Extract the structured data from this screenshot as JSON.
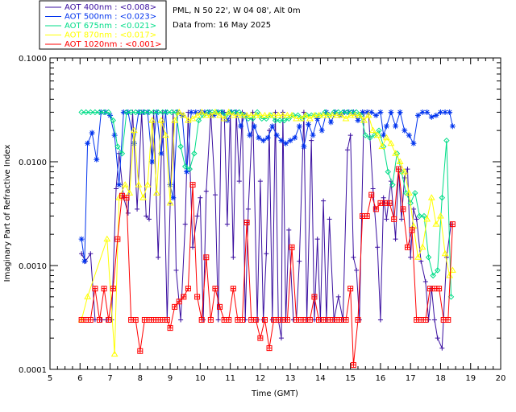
{
  "chart_data": {
    "type": "scatter",
    "title": "PML, N 50 22', W 04 08', Alt 0m",
    "subtitle": "Data from: 16 May 2025",
    "xlabel": "Time (GMT)",
    "ylabel": "Imaginary Part of Refractive Index",
    "xlim": [
      5,
      20
    ],
    "ylim": [
      0.0001,
      0.1
    ],
    "yscale": "log",
    "x_ticks": [
      "5",
      "6",
      "7",
      "8",
      "9",
      "10",
      "11",
      "12",
      "13",
      "14",
      "15",
      "16",
      "17",
      "18",
      "19",
      "20"
    ],
    "y_ticks": [
      "0.0001",
      "0.0010",
      "0.0100",
      "0.1000"
    ],
    "legend": [
      {
        "label": "AOT  400nm : <0.008>",
        "color": "#3a0fa0"
      },
      {
        "label": "AOT  500nm : <0.023>",
        "color": "#0033ee"
      },
      {
        "label": "AOT  675nm : <0.021>",
        "color": "#00dd88"
      },
      {
        "label": "AOT  870nm : <0.017>",
        "color": "#ffff00"
      },
      {
        "label": "AOT 1020nm : <0.001>",
        "color": "#ff0000"
      }
    ],
    "series": [
      {
        "name": "AOT 400nm",
        "color": "#3a0fa0",
        "marker": "plus",
        "x": [
          6.05,
          6.18,
          6.35,
          6.5,
          6.7,
          6.9,
          7.05,
          7.2,
          7.3,
          7.45,
          7.6,
          7.75,
          7.9,
          8.05,
          8.2,
          8.3,
          8.45,
          8.6,
          8.75,
          8.9,
          9.0,
          9.1,
          9.2,
          9.35,
          9.5,
          9.6,
          9.75,
          9.9,
          10.0,
          10.1,
          10.2,
          10.35,
          10.5,
          10.6,
          10.7,
          10.8,
          10.9,
          11.0,
          11.1,
          11.2,
          11.3,
          11.4,
          11.5,
          11.6,
          11.75,
          11.9,
          12.0,
          12.1,
          12.2,
          12.3,
          12.4,
          12.5,
          12.6,
          12.7,
          12.75,
          12.85,
          12.95,
          13.1,
          13.2,
          13.3,
          13.45,
          13.55,
          13.7,
          13.8,
          13.9,
          14.0,
          14.1,
          14.2,
          14.3,
          14.45,
          14.6,
          14.75,
          14.9,
          15.0,
          15.1,
          15.2,
          15.3,
          15.45,
          15.6,
          15.75,
          15.9,
          16.0,
          16.1,
          16.2,
          16.35,
          16.5,
          16.6,
          16.7,
          16.8,
          16.9,
          17.0,
          17.1,
          17.2,
          17.35,
          17.5,
          17.6,
          17.7,
          17.8,
          17.9,
          18.05,
          18.2,
          18.35
        ],
        "y": [
          0.0013,
          0.0011,
          0.0013,
          0.0003,
          0.0003,
          0.0003,
          0.0003,
          0.0055,
          0.012,
          0.0045,
          0.0032,
          0.03,
          0.0035,
          0.03,
          0.003,
          0.0028,
          0.03,
          0.0012,
          0.03,
          0.0003,
          0.004,
          0.03,
          0.0009,
          0.0003,
          0.0025,
          0.03,
          0.0015,
          0.003,
          0.0045,
          0.0003,
          0.0052,
          0.03,
          0.0048,
          0.0003,
          0.03,
          0.03,
          0.0025,
          0.03,
          0.0012,
          0.03,
          0.0065,
          0.03,
          0.0003,
          0.0035,
          0.03,
          0.0003,
          0.0065,
          0.0003,
          0.0013,
          0.02,
          0.0003,
          0.03,
          0.0003,
          0.0002,
          0.03,
          0.0003,
          0.0022,
          0.0003,
          0.0003,
          0.0011,
          0.03,
          0.0003,
          0.016,
          0.0003,
          0.0018,
          0.0003,
          0.0042,
          0.0003,
          0.0028,
          0.0003,
          0.0005,
          0.0003,
          0.013,
          0.018,
          0.0012,
          0.0009,
          0.0003,
          0.03,
          0.03,
          0.0055,
          0.0015,
          0.0003,
          0.0045,
          0.0028,
          0.0065,
          0.0018,
          0.0085,
          0.0028,
          0.007,
          0.0085,
          0.0012,
          0.0035,
          0.0028,
          0.0011,
          0.0007,
          0.0003,
          0.0006,
          0.0003,
          0.0002,
          0.00016,
          0.0012,
          0.0025
        ]
      },
      {
        "name": "AOT 500nm",
        "color": "#0033ee",
        "marker": "asterisk",
        "x": [
          6.05,
          6.15,
          6.25,
          6.4,
          6.55,
          6.7,
          6.85,
          7.0,
          7.15,
          7.3,
          7.45,
          7.6,
          7.8,
          7.95,
          8.1,
          8.25,
          8.4,
          8.55,
          8.7,
          8.85,
          9.0,
          9.1,
          9.25,
          9.4,
          9.55,
          9.7,
          9.85,
          10.0,
          10.15,
          10.3,
          10.45,
          10.6,
          10.75,
          10.9,
          11.05,
          11.2,
          11.35,
          11.5,
          11.65,
          11.8,
          11.95,
          12.1,
          12.25,
          12.4,
          12.55,
          12.7,
          12.85,
          13.0,
          13.15,
          13.3,
          13.45,
          13.6,
          13.75,
          13.9,
          14.05,
          14.2,
          14.35,
          14.5,
          14.65,
          14.8,
          14.95,
          15.1,
          15.25,
          15.4,
          15.55,
          15.7,
          15.85,
          16.0,
          16.1,
          16.2,
          16.35,
          16.5,
          16.65,
          16.8,
          16.95,
          17.1,
          17.25,
          17.4,
          17.55,
          17.7,
          17.85,
          18.0,
          18.15,
          18.3,
          18.4
        ],
        "y": [
          0.0018,
          0.0011,
          0.015,
          0.019,
          0.0105,
          0.03,
          0.03,
          0.028,
          0.018,
          0.006,
          0.03,
          0.03,
          0.015,
          0.03,
          0.03,
          0.03,
          0.01,
          0.03,
          0.012,
          0.03,
          0.006,
          0.0045,
          0.03,
          0.028,
          0.008,
          0.03,
          0.03,
          0.03,
          0.03,
          0.03,
          0.028,
          0.03,
          0.03,
          0.025,
          0.03,
          0.03,
          0.022,
          0.028,
          0.018,
          0.022,
          0.017,
          0.016,
          0.017,
          0.022,
          0.018,
          0.016,
          0.015,
          0.016,
          0.017,
          0.022,
          0.014,
          0.023,
          0.018,
          0.026,
          0.02,
          0.03,
          0.024,
          0.03,
          0.028,
          0.03,
          0.03,
          0.03,
          0.025,
          0.03,
          0.03,
          0.03,
          0.028,
          0.03,
          0.018,
          0.022,
          0.03,
          0.022,
          0.03,
          0.02,
          0.018,
          0.015,
          0.028,
          0.03,
          0.03,
          0.027,
          0.028,
          0.03,
          0.03,
          0.03,
          0.022
        ]
      },
      {
        "name": "AOT 675nm",
        "color": "#00dd88",
        "marker": "diamond",
        "x": [
          6.05,
          6.2,
          6.35,
          6.5,
          6.65,
          6.8,
          6.95,
          7.1,
          7.25,
          7.4,
          7.55,
          7.7,
          7.85,
          8.0,
          8.15,
          8.3,
          8.45,
          8.6,
          8.75,
          8.9,
          9.05,
          9.2,
          9.35,
          9.5,
          9.65,
          9.8,
          9.95,
          10.1,
          10.25,
          10.4,
          10.55,
          10.7,
          10.85,
          11.0,
          11.15,
          11.3,
          11.45,
          11.6,
          11.75,
          11.9,
          12.05,
          12.2,
          12.35,
          12.5,
          12.65,
          12.8,
          12.95,
          13.1,
          13.25,
          13.4,
          13.55,
          13.7,
          13.85,
          14.0,
          14.15,
          14.3,
          14.45,
          14.6,
          14.75,
          14.9,
          15.05,
          15.2,
          15.35,
          15.5,
          15.65,
          15.8,
          15.95,
          16.1,
          16.25,
          16.4,
          16.55,
          16.7,
          16.85,
          17.0,
          17.15,
          17.3,
          17.45,
          17.6,
          17.75,
          17.9,
          18.05,
          18.2,
          18.35
        ],
        "y": [
          0.03,
          0.03,
          0.03,
          0.03,
          0.03,
          0.03,
          0.03,
          0.025,
          0.014,
          0.012,
          0.03,
          0.03,
          0.03,
          0.03,
          0.03,
          0.03,
          0.03,
          0.03,
          0.03,
          0.03,
          0.03,
          0.03,
          0.014,
          0.009,
          0.0085,
          0.012,
          0.025,
          0.028,
          0.03,
          0.03,
          0.03,
          0.03,
          0.028,
          0.03,
          0.03,
          0.03,
          0.028,
          0.026,
          0.026,
          0.03,
          0.026,
          0.026,
          0.028,
          0.025,
          0.025,
          0.025,
          0.026,
          0.028,
          0.028,
          0.026,
          0.028,
          0.028,
          0.028,
          0.028,
          0.03,
          0.028,
          0.03,
          0.03,
          0.03,
          0.03,
          0.03,
          0.03,
          0.028,
          0.018,
          0.017,
          0.018,
          0.02,
          0.014,
          0.008,
          0.006,
          0.012,
          0.008,
          0.005,
          0.004,
          0.005,
          0.003,
          0.003,
          0.0012,
          0.0008,
          0.0009,
          0.0045,
          0.016,
          0.0005
        ]
      },
      {
        "name": "AOT 870nm",
        "color": "#ffff00",
        "marker": "triangle",
        "x": [
          6.05,
          6.25,
          6.9,
          7.15,
          7.3,
          7.5,
          7.65,
          7.8,
          7.95,
          8.1,
          8.25,
          8.4,
          8.55,
          8.7,
          8.85,
          9.0,
          9.15,
          9.3,
          9.45,
          9.6,
          9.75,
          9.9,
          10.05,
          10.2,
          10.35,
          10.5,
          10.65,
          10.8,
          10.95,
          11.1,
          11.25,
          11.4,
          11.55,
          11.7,
          11.85,
          12.0,
          12.15,
          12.3,
          12.45,
          12.6,
          12.75,
          12.9,
          13.05,
          13.2,
          13.35,
          13.5,
          13.65,
          13.8,
          13.95,
          14.1,
          14.25,
          14.4,
          14.55,
          14.7,
          14.85,
          15.0,
          15.15,
          15.3,
          15.45,
          15.6,
          15.75,
          15.9,
          16.05,
          16.2,
          16.35,
          16.5,
          16.65,
          16.8,
          16.95,
          17.1,
          17.25,
          17.4,
          17.55,
          17.7,
          17.85,
          18.0,
          18.15,
          18.3,
          18.4
        ],
        "y": [
          0.0003,
          0.0005,
          0.0018,
          0.00014,
          0.0045,
          0.006,
          0.005,
          0.02,
          0.006,
          0.0045,
          0.006,
          0.025,
          0.005,
          0.025,
          0.018,
          0.004,
          0.025,
          0.03,
          0.028,
          0.025,
          0.026,
          0.028,
          0.03,
          0.028,
          0.028,
          0.03,
          0.028,
          0.026,
          0.03,
          0.028,
          0.028,
          0.028,
          0.028,
          0.028,
          0.028,
          0.028,
          0.028,
          0.028,
          0.028,
          0.028,
          0.028,
          0.028,
          0.028,
          0.026,
          0.026,
          0.028,
          0.026,
          0.028,
          0.028,
          0.028,
          0.028,
          0.028,
          0.028,
          0.028,
          0.026,
          0.028,
          0.028,
          0.028,
          0.025,
          0.028,
          0.02,
          0.018,
          0.014,
          0.017,
          0.015,
          0.012,
          0.01,
          0.008,
          0.005,
          0.0024,
          0.0012,
          0.0015,
          0.0028,
          0.0045,
          0.0025,
          0.003,
          0.0013,
          0.0008,
          0.0009
        ]
      },
      {
        "name": "AOT 1020nm",
        "color": "#ff0000",
        "marker": "square",
        "x": [
          6.05,
          6.2,
          6.35,
          6.5,
          6.65,
          6.8,
          6.95,
          7.1,
          7.25,
          7.4,
          7.55,
          7.7,
          7.85,
          8.0,
          8.15,
          8.3,
          8.45,
          8.6,
          8.75,
          8.9,
          9.0,
          9.15,
          9.3,
          9.45,
          9.6,
          9.75,
          9.9,
          10.05,
          10.2,
          10.35,
          10.5,
          10.65,
          10.8,
          10.95,
          11.1,
          11.25,
          11.4,
          11.55,
          11.7,
          11.85,
          12.0,
          12.15,
          12.3,
          12.45,
          12.6,
          12.75,
          12.9,
          13.05,
          13.2,
          13.35,
          13.5,
          13.65,
          13.8,
          13.95,
          14.1,
          14.25,
          14.4,
          14.55,
          14.7,
          14.85,
          15.0,
          15.1,
          15.25,
          15.4,
          15.55,
          15.7,
          15.85,
          16.0,
          16.15,
          16.3,
          16.45,
          16.6,
          16.75,
          16.9,
          17.05,
          17.2,
          17.35,
          17.5,
          17.65,
          17.8,
          17.95,
          18.1,
          18.25,
          18.4
        ],
        "y": [
          0.0003,
          0.0003,
          0.0003,
          0.0006,
          0.0003,
          0.0006,
          0.0003,
          0.0006,
          0.0018,
          0.0047,
          0.0045,
          0.0003,
          0.0003,
          0.00015,
          0.0003,
          0.0003,
          0.0003,
          0.0003,
          0.0003,
          0.0003,
          0.00025,
          0.0004,
          0.00045,
          0.0005,
          0.0006,
          0.006,
          0.0005,
          0.0003,
          0.0012,
          0.0003,
          0.0006,
          0.0004,
          0.0003,
          0.0003,
          0.0006,
          0.0003,
          0.0003,
          0.0026,
          0.0003,
          0.0003,
          0.0002,
          0.0003,
          0.00016,
          0.0003,
          0.0003,
          0.0003,
          0.0003,
          0.0015,
          0.0003,
          0.0003,
          0.0003,
          0.0003,
          0.0005,
          0.0003,
          0.0003,
          0.0003,
          0.0003,
          0.0003,
          0.0003,
          0.0003,
          0.0006,
          0.00011,
          0.0003,
          0.003,
          0.003,
          0.0048,
          0.0035,
          0.004,
          0.004,
          0.004,
          0.0028,
          0.0085,
          0.0035,
          0.0015,
          0.0022,
          0.0003,
          0.0003,
          0.0003,
          0.0006,
          0.0006,
          0.0006,
          0.0003,
          0.0003,
          0.0025
        ]
      }
    ]
  }
}
